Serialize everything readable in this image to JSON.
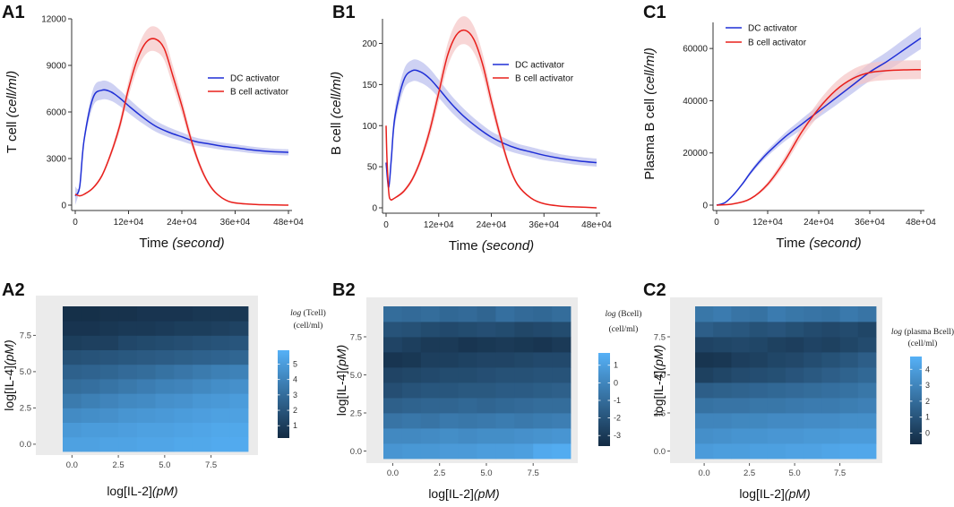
{
  "chart_data": [
    {
      "id": "A1",
      "type": "line",
      "panel_label": "A1",
      "xlabel": "Time",
      "xlabel_unit": "(second)",
      "ylabel": "T cell",
      "ylabel_unit": "(cell/ml)",
      "xlim": [
        0,
        480000
      ],
      "ylim": [
        0,
        12000
      ],
      "x_ticks": [
        0,
        120000,
        240000,
        360000,
        480000
      ],
      "x_tick_labels": [
        "0",
        "12e+04",
        "24e+04",
        "36e+04",
        "48e+04"
      ],
      "y_ticks": [
        0,
        3000,
        6000,
        9000,
        12000
      ],
      "y_tick_labels": [
        "0",
        "3000",
        "6000",
        "9000",
        "12000"
      ],
      "legend_position": "center-right",
      "series": [
        {
          "name": "DC activator",
          "color": "#1f2fd6",
          "band_color": "#b9bdee",
          "x": [
            0,
            10000,
            20000,
            40000,
            60000,
            80000,
            100000,
            120000,
            150000,
            180000,
            210000,
            240000,
            270000,
            300000,
            330000,
            360000,
            400000,
            440000,
            480000
          ],
          "values": [
            600,
            1200,
            4200,
            6900,
            7400,
            7300,
            6900,
            6400,
            5700,
            5100,
            4700,
            4400,
            4100,
            3950,
            3800,
            3700,
            3550,
            3450,
            3400
          ],
          "band": [
            600,
            100,
            250,
            550,
            600,
            580,
            520,
            470,
            410,
            360,
            320,
            290,
            260,
            240,
            230,
            220,
            210,
            200,
            200
          ]
        },
        {
          "name": "B cell activator",
          "color": "#e8201c",
          "band_color": "#f5c4c4",
          "x": [
            0,
            10000,
            20000,
            40000,
            60000,
            80000,
            100000,
            120000,
            140000,
            160000,
            180000,
            200000,
            220000,
            240000,
            260000,
            280000,
            300000,
            320000,
            350000,
            400000,
            450000,
            480000
          ],
          "values": [
            700,
            600,
            700,
            1100,
            1900,
            3300,
            5100,
            7500,
            9400,
            10500,
            10700,
            10100,
            8300,
            6400,
            4300,
            2600,
            1400,
            700,
            200,
            50,
            20,
            0
          ],
          "band": [
            50,
            50,
            50,
            80,
            120,
            200,
            350,
            500,
            650,
            750,
            800,
            750,
            650,
            500,
            350,
            220,
            120,
            60,
            30,
            10,
            5,
            0
          ]
        }
      ]
    },
    {
      "id": "B1",
      "type": "line",
      "panel_label": "B1",
      "xlabel": "Time",
      "xlabel_unit": "(second)",
      "ylabel": "B cell",
      "ylabel_unit": "(cell/ml)",
      "xlim": [
        0,
        480000
      ],
      "ylim": [
        0,
        230
      ],
      "x_ticks": [
        0,
        120000,
        240000,
        360000,
        480000
      ],
      "x_tick_labels": [
        "0",
        "12e+04",
        "24e+04",
        "36e+04",
        "48e+04"
      ],
      "y_ticks": [
        0,
        50,
        100,
        150,
        200
      ],
      "y_tick_labels": [
        "0",
        "50",
        "100",
        "150",
        "200"
      ],
      "legend_position": "top-right",
      "series": [
        {
          "name": "DC activator",
          "color": "#1f2fd6",
          "band_color": "#b9bdee",
          "x": [
            0,
            6000,
            12000,
            20000,
            40000,
            60000,
            80000,
            100000,
            120000,
            150000,
            180000,
            210000,
            240000,
            270000,
            300000,
            330000,
            360000,
            400000,
            440000,
            480000
          ],
          "values": [
            55,
            25,
            60,
            110,
            155,
            167,
            165,
            157,
            145,
            126,
            110,
            97,
            86,
            78,
            72,
            68,
            64,
            60,
            57,
            55
          ],
          "band": [
            5,
            5,
            8,
            10,
            12,
            13,
            13,
            12,
            11,
            10,
            9,
            8,
            7,
            7,
            6,
            6,
            6,
            5,
            5,
            5
          ]
        },
        {
          "name": "B cell activator",
          "color": "#e8201c",
          "band_color": "#f5c4c4",
          "x": [
            0,
            2000,
            6000,
            10000,
            20000,
            40000,
            60000,
            80000,
            100000,
            120000,
            140000,
            160000,
            180000,
            200000,
            220000,
            240000,
            260000,
            280000,
            300000,
            330000,
            360000,
            400000,
            440000,
            480000
          ],
          "values": [
            100,
            60,
            20,
            10,
            12,
            20,
            35,
            60,
            95,
            140,
            185,
            210,
            216,
            205,
            175,
            130,
            88,
            52,
            28,
            12,
            5,
            2,
            1,
            0
          ],
          "band": [
            0,
            0,
            1,
            1,
            1,
            2,
            3,
            5,
            8,
            11,
            14,
            16,
            17,
            16,
            13,
            10,
            7,
            4,
            2,
            1,
            0,
            0,
            0,
            0
          ]
        }
      ]
    },
    {
      "id": "C1",
      "type": "line",
      "panel_label": "C1",
      "xlabel": "Time",
      "xlabel_unit": "(second)",
      "ylabel": "Plasma B cell",
      "ylabel_unit": "(cell/ml)",
      "xlim": [
        0,
        480000
      ],
      "ylim": [
        0,
        70000
      ],
      "x_ticks": [
        0,
        120000,
        240000,
        360000,
        480000
      ],
      "x_tick_labels": [
        "0",
        "12e+04",
        "24e+04",
        "36e+04",
        "48e+04"
      ],
      "y_ticks": [
        0,
        20000,
        40000,
        60000
      ],
      "y_tick_labels": [
        "0",
        "20000",
        "40000",
        "60000"
      ],
      "legend_position": "top-left",
      "series": [
        {
          "name": "DC activator",
          "color": "#1f2fd6",
          "band_color": "#b9bdee",
          "x": [
            0,
            20000,
            40000,
            60000,
            80000,
            100000,
            120000,
            160000,
            200000,
            240000,
            280000,
            320000,
            360000,
            400000,
            440000,
            480000
          ],
          "values": [
            0,
            1000,
            4000,
            8000,
            12500,
            16500,
            20000,
            26000,
            31000,
            36000,
            41000,
            46000,
            51000,
            55000,
            59500,
            64000
          ],
          "band": [
            0,
            100,
            300,
            500,
            800,
            1000,
            1200,
            1600,
            2000,
            2400,
            2800,
            3100,
            3400,
            3700,
            4000,
            4200
          ]
        },
        {
          "name": "B cell activator",
          "color": "#e8201c",
          "band_color": "#f5c4c4",
          "x": [
            0,
            40000,
            80000,
            120000,
            160000,
            200000,
            240000,
            280000,
            320000,
            360000,
            400000,
            440000,
            480000
          ],
          "values": [
            0,
            500,
            2500,
            8000,
            17000,
            28000,
            37000,
            44000,
            48500,
            50800,
            51500,
            51800,
            51900
          ],
          "band": [
            0,
            50,
            300,
            900,
            1600,
            2200,
            2800,
            3200,
            3500,
            3600,
            3600,
            3600,
            3600
          ]
        }
      ]
    },
    {
      "id": "A2",
      "type": "heatmap",
      "panel_label": "A2",
      "xlabel": "log[IL-2]",
      "xlabel_unit": "(pM)",
      "ylabel": "log[IL-4]",
      "ylabel_unit": "(pM)",
      "xlim": [
        -0.5,
        9.5
      ],
      "ylim": [
        -0.5,
        9.5
      ],
      "x_ticks": [
        0,
        2.5,
        5,
        7.5
      ],
      "x_tick_labels": [
        "0.0",
        "2.5",
        "5.0",
        "7.5"
      ],
      "y_ticks": [
        0,
        2.5,
        5,
        7.5
      ],
      "y_tick_labels": [
        "0.0",
        "2.5",
        "5.0",
        "7.5"
      ],
      "colorbar": {
        "title_log": "log",
        "title_name": "(Tcell)",
        "title_unit": "(cell/ml)",
        "min": 0.2,
        "max": 5.9,
        "ticks": [
          1,
          2,
          3,
          4,
          5
        ],
        "tick_labels": [
          "1",
          "2",
          "3",
          "4",
          "5"
        ],
        "color_low": "#132b43",
        "color_high": "#56b1f7"
      },
      "z_rows_bottom_to_top": [
        [
          5.2,
          5.2,
          5.3,
          5.3,
          5.4,
          5.4,
          5.5,
          5.5,
          5.6,
          5.6
        ],
        [
          4.9,
          5.0,
          5.0,
          5.1,
          5.2,
          5.2,
          5.3,
          5.4,
          5.5,
          5.5
        ],
        [
          4.3,
          4.4,
          4.5,
          4.7,
          4.8,
          4.9,
          5.0,
          5.1,
          5.2,
          5.2
        ],
        [
          3.6,
          3.8,
          4.0,
          4.2,
          4.3,
          4.5,
          4.6,
          4.8,
          4.9,
          5.0
        ],
        [
          3.0,
          3.1,
          3.3,
          3.5,
          3.7,
          3.9,
          4.0,
          4.2,
          4.4,
          4.5
        ],
        [
          2.5,
          2.6,
          2.7,
          2.9,
          3.0,
          3.2,
          3.4,
          3.6,
          3.8,
          3.9
        ],
        [
          1.8,
          1.9,
          2.0,
          2.1,
          2.2,
          2.3,
          2.4,
          2.5,
          2.6,
          2.7
        ],
        [
          1.0,
          1.1,
          1.1,
          1.4,
          1.5,
          1.6,
          1.7,
          1.8,
          1.9,
          2.0
        ],
        [
          0.6,
          0.6,
          0.7,
          0.8,
          0.8,
          0.9,
          1.0,
          1.0,
          1.1,
          1.2
        ],
        [
          0.4,
          0.4,
          0.5,
          0.5,
          0.6,
          0.6,
          0.6,
          0.7,
          0.7,
          0.7
        ]
      ]
    },
    {
      "id": "B2",
      "type": "heatmap",
      "panel_label": "B2",
      "xlabel": "log[IL-2]",
      "xlabel_unit": "(pM)",
      "ylabel": "log[IL-4]",
      "ylabel_unit": "(pM)",
      "xlim": [
        -0.5,
        9.5
      ],
      "ylim": [
        -0.5,
        9.5
      ],
      "x_ticks": [
        0,
        2.5,
        5,
        7.5
      ],
      "x_tick_labels": [
        "0.0",
        "2.5",
        "5.0",
        "7.5"
      ],
      "y_ticks": [
        0,
        2.5,
        5,
        7.5
      ],
      "y_tick_labels": [
        "0.0",
        "2.5",
        "5.0",
        "7.5"
      ],
      "colorbar": {
        "title_log": "log",
        "title_name": "(Bcell)",
        "title_unit": "(cell/ml)",
        "min": -3.6,
        "max": 1.7,
        "ticks": [
          -3,
          -2,
          -1,
          0,
          1
        ],
        "tick_labels": [
          "-3",
          "-2",
          "-1",
          "0",
          "1"
        ],
        "color_low": "#132b43",
        "color_high": "#56b1f7"
      },
      "z_rows_bottom_to_top": [
        [
          0.6,
          0.7,
          0.7,
          0.8,
          0.8,
          0.9,
          0.9,
          1.0,
          1.4,
          1.5
        ],
        [
          0.1,
          0.1,
          0.2,
          0.3,
          0.2,
          0.3,
          0.3,
          0.4,
          0.5,
          0.6
        ],
        [
          -0.7,
          -0.6,
          -0.7,
          -0.5,
          -0.6,
          -0.5,
          -0.4,
          -0.5,
          -0.4,
          -0.3
        ],
        [
          -1.5,
          -1.4,
          -1.3,
          -1.3,
          -1.2,
          -1.3,
          -1.2,
          -1.1,
          -1.0,
          -1.0
        ],
        [
          -2.2,
          -2.0,
          -1.9,
          -1.9,
          -1.8,
          -1.8,
          -1.7,
          -1.7,
          -1.6,
          -1.5
        ],
        [
          -2.6,
          -2.5,
          -2.4,
          -2.3,
          -2.3,
          -2.2,
          -2.1,
          -2.1,
          -2.0,
          -2.0
        ],
        [
          -3.2,
          -3.1,
          -2.8,
          -2.8,
          -2.7,
          -2.6,
          -2.6,
          -2.5,
          -2.4,
          -2.4
        ],
        [
          -2.6,
          -2.8,
          -3.0,
          -3.0,
          -3.2,
          -3.1,
          -3.0,
          -3.1,
          -3.2,
          -3.0
        ],
        [
          -2.0,
          -2.1,
          -2.3,
          -2.4,
          -2.3,
          -2.2,
          -2.3,
          -2.5,
          -2.4,
          -2.3
        ],
        [
          -1.0,
          -1.1,
          -1.0,
          -1.2,
          -1.1,
          -1.3,
          -0.9,
          -1.1,
          -1.2,
          -1.0
        ]
      ]
    },
    {
      "id": "C2",
      "type": "heatmap",
      "panel_label": "C2",
      "xlabel": "log[IL-2]",
      "xlabel_unit": "(pM)",
      "ylabel": "log[IL-4]",
      "ylabel_unit": "(pM)",
      "xlim": [
        -0.5,
        9.5
      ],
      "ylim": [
        -0.5,
        9.5
      ],
      "x_ticks": [
        0,
        2.5,
        5,
        7.5
      ],
      "x_tick_labels": [
        "0.0",
        "2.5",
        "5.0",
        "7.5"
      ],
      "y_ticks": [
        0,
        2.5,
        5,
        7.5
      ],
      "y_tick_labels": [
        "0.0",
        "2.5",
        "5.0",
        "7.5"
      ],
      "colorbar": {
        "title_log": "log",
        "title_name": "(plasma Bcell)",
        "title_unit": "(cell/ml)",
        "min": -0.7,
        "max": 4.8,
        "ticks": [
          0,
          1,
          2,
          3,
          4
        ],
        "tick_labels": [
          "0",
          "1",
          "2",
          "3",
          "4"
        ],
        "color_low": "#132b43",
        "color_high": "#56b1f7"
      },
      "z_rows_bottom_to_top": [
        [
          3.9,
          4.0,
          4.0,
          4.1,
          4.1,
          4.2,
          4.2,
          4.3,
          4.4,
          4.4
        ],
        [
          3.4,
          3.5,
          3.6,
          3.6,
          3.7,
          3.7,
          3.8,
          3.8,
          3.9,
          3.9
        ],
        [
          3.0,
          3.0,
          3.1,
          3.1,
          3.2,
          3.2,
          3.3,
          3.3,
          3.4,
          3.4
        ],
        [
          2.2,
          2.3,
          2.3,
          2.4,
          2.4,
          2.5,
          2.6,
          2.6,
          2.7,
          2.8
        ],
        [
          1.4,
          1.5,
          1.6,
          1.7,
          1.8,
          1.9,
          2.0,
          2.1,
          2.2,
          2.4
        ],
        [
          0.2,
          0.4,
          0.6,
          0.7,
          0.8,
          1.0,
          1.2,
          1.4,
          1.6,
          1.8
        ],
        [
          -0.3,
          -0.2,
          0.1,
          0.2,
          0.4,
          0.5,
          0.7,
          0.9,
          1.1,
          1.4
        ],
        [
          0.3,
          0.4,
          0.5,
          0.4,
          0.2,
          0.1,
          0.3,
          0.2,
          0.4,
          0.6
        ],
        [
          1.4,
          1.2,
          1.1,
          0.9,
          1.0,
          0.8,
          0.6,
          0.5,
          0.6,
          0.4
        ],
        [
          2.4,
          2.6,
          2.3,
          2.2,
          2.6,
          2.4,
          2.3,
          2.2,
          2.5,
          2.3
        ]
      ]
    }
  ]
}
